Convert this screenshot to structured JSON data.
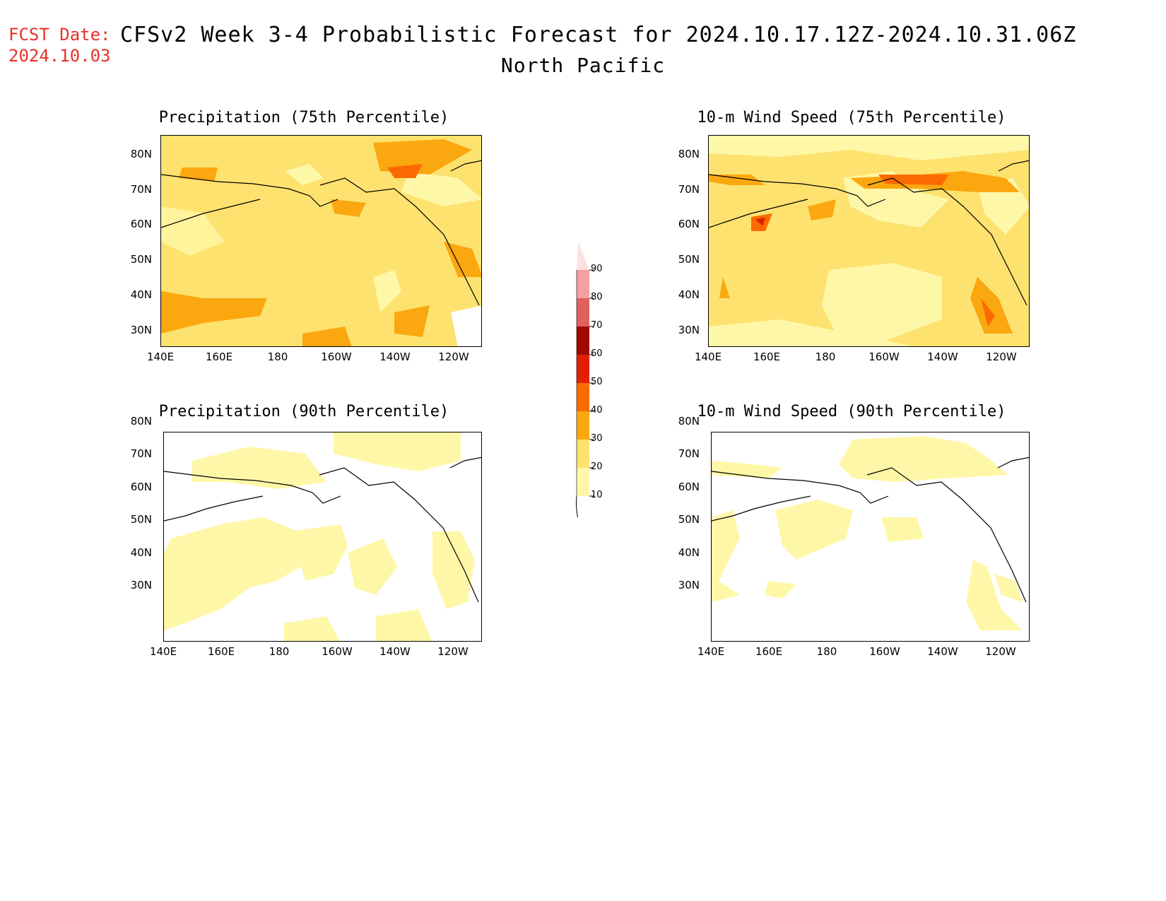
{
  "header": {
    "fcst_label": "FCST Date:",
    "fcst_date": "2024.10.03",
    "title": "CFSv2 Week 3-4 Probabilistic Forecast for 2024.10.17.12Z-2024.10.31.06Z",
    "subtitle": "North Pacific"
  },
  "axes": {
    "lat_labels": [
      "80N",
      "70N",
      "60N",
      "50N",
      "40N",
      "30N"
    ],
    "lon_labels": [
      "140E",
      "160E",
      "180",
      "160W",
      "140W",
      "120W"
    ]
  },
  "panels": [
    {
      "title": "Precipitation (75th Percentile)"
    },
    {
      "title": "10-m Wind Speed (75th Percentile)"
    },
    {
      "title": "Precipitation (90th Percentile)"
    },
    {
      "title": "10-m Wind Speed (90th Percentile)"
    }
  ],
  "colorbar": {
    "levels": [
      "10",
      "20",
      "30",
      "40",
      "50",
      "60",
      "70",
      "80",
      "90"
    ],
    "colors": [
      "#fff7a8",
      "#fde26f",
      "#fba70f",
      "#fb6a00",
      "#e02000",
      "#a00a00",
      "#e06060",
      "#f4a0a0",
      "#fde0e0"
    ]
  },
  "colors": {
    "title": "#e8302a",
    "fill_10": "#fff7a8",
    "fill_20": "#fde26f",
    "fill_30": "#fba70f",
    "fill_40": "#fb6a00",
    "fill_50": "#e02000"
  }
}
